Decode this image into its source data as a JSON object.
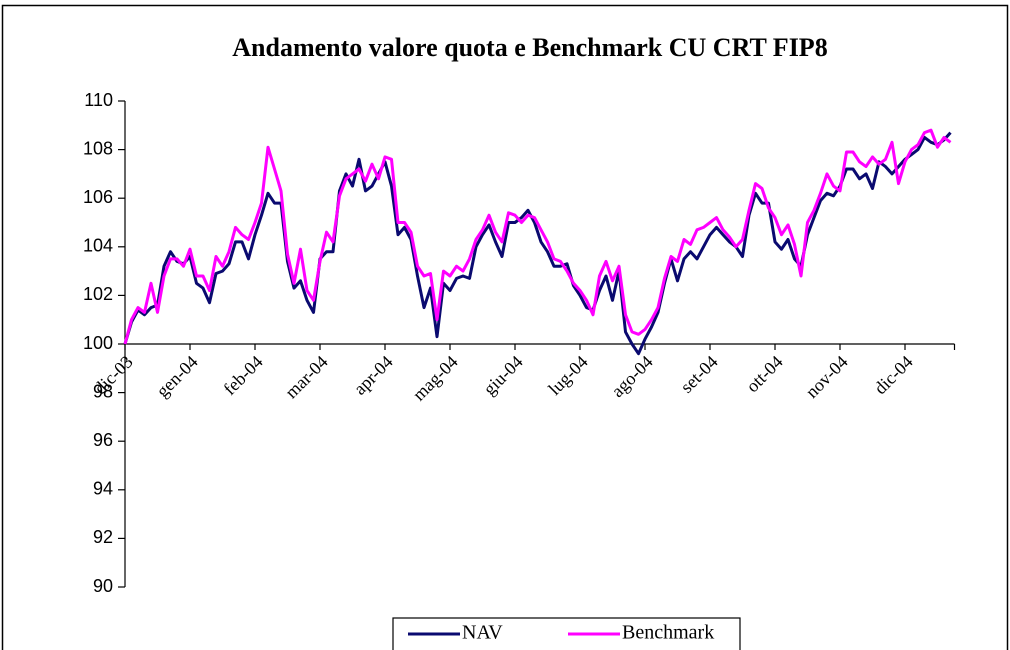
{
  "chart_data": {
    "type": "line",
    "title": "Andamento valore quota e Benchmark CU CRT FIP8",
    "categories": [
      "dic-03",
      null,
      null,
      null,
      null,
      null,
      null,
      null,
      null,
      null,
      "gen-04",
      null,
      null,
      null,
      null,
      null,
      null,
      null,
      null,
      null,
      "feb-04",
      null,
      null,
      null,
      null,
      null,
      null,
      null,
      null,
      null,
      "mar-04",
      null,
      null,
      null,
      null,
      null,
      null,
      null,
      null,
      null,
      "apr-04",
      null,
      null,
      null,
      null,
      null,
      null,
      null,
      null,
      null,
      "mag-04",
      null,
      null,
      null,
      null,
      null,
      null,
      null,
      null,
      null,
      "giu-04",
      null,
      null,
      null,
      null,
      null,
      null,
      null,
      null,
      null,
      "lug-04",
      null,
      null,
      null,
      null,
      null,
      null,
      null,
      null,
      null,
      "ago-04",
      null,
      null,
      null,
      null,
      null,
      null,
      null,
      null,
      null,
      "set-04",
      null,
      null,
      null,
      null,
      null,
      null,
      null,
      null,
      null,
      "ott-04",
      null,
      null,
      null,
      null,
      null,
      null,
      null,
      null,
      null,
      "nov-04",
      null,
      null,
      null,
      null,
      null,
      null,
      null,
      null,
      null,
      "dic-04",
      null,
      null,
      null,
      null,
      null,
      null,
      null
    ],
    "series": [
      {
        "name": "NAV",
        "color": "#0a0a70",
        "values": [
          100,
          100.9,
          101.4,
          101.2,
          101.5,
          101.6,
          103.2,
          103.8,
          103.4,
          103.3,
          103.6,
          102.5,
          102.3,
          101.7,
          102.9,
          103,
          103.3,
          104.2,
          104.2,
          103.5,
          104.5,
          105.3,
          106.2,
          105.8,
          105.8,
          103.4,
          102.3,
          102.6,
          101.8,
          101.3,
          103.5,
          103.8,
          103.8,
          106.3,
          107,
          106.5,
          107.6,
          106.3,
          106.5,
          107,
          107.5,
          106.5,
          104.5,
          104.8,
          104.3,
          102.8,
          101.5,
          102.3,
          100.3,
          102.5,
          102.2,
          102.7,
          102.8,
          102.7,
          104,
          104.5,
          104.9,
          104.2,
          103.6,
          105,
          105,
          105.2,
          105.5,
          105,
          104.2,
          103.8,
          103.2,
          103.2,
          103.3,
          102.4,
          102,
          101.5,
          101.4,
          102.2,
          102.8,
          101.8,
          103,
          100.5,
          100,
          99.6,
          100.2,
          100.7,
          101.3,
          102.5,
          103.5,
          102.6,
          103.5,
          103.8,
          103.5,
          104,
          104.5,
          104.8,
          104.5,
          104.2,
          104,
          103.6,
          105.3,
          106.2,
          105.8,
          105.8,
          104.2,
          103.9,
          104.3,
          103.5,
          103.2,
          104.5,
          105.2,
          105.9,
          106.2,
          106.1,
          106.5,
          107.2,
          107.2,
          106.8,
          107,
          106.4,
          107.5,
          107.3,
          107,
          107.3,
          107.6,
          107.8,
          108,
          108.5,
          108.3,
          108.2,
          108.4,
          108.7
        ]
      },
      {
        "name": "Benchmark",
        "color": "#ff00ff",
        "values": [
          100,
          101,
          101.5,
          101.3,
          102.5,
          101.3,
          102.8,
          103.5,
          103.5,
          103.2,
          103.9,
          102.8,
          102.8,
          102.2,
          103.6,
          103.2,
          103.8,
          104.8,
          104.5,
          104.3,
          105,
          105.8,
          108.1,
          107.2,
          106.3,
          103.7,
          102.5,
          103.9,
          102.2,
          101.8,
          103.4,
          104.6,
          104.2,
          106.1,
          106.8,
          107,
          107.2,
          106.7,
          107.4,
          106.8,
          107.7,
          107.6,
          105,
          105,
          104.6,
          103.2,
          102.8,
          102.9,
          101,
          103,
          102.8,
          103.2,
          103,
          103.5,
          104.3,
          104.7,
          105.3,
          104.6,
          104.2,
          105.4,
          105.3,
          105,
          105.3,
          105.2,
          104.7,
          104.2,
          103.5,
          103.4,
          103,
          102.5,
          102.2,
          101.8,
          101.2,
          102.8,
          103.4,
          102.6,
          103.2,
          101.2,
          100.5,
          100.4,
          100.6,
          101,
          101.5,
          102.7,
          103.6,
          103.4,
          104.3,
          104.1,
          104.7,
          104.8,
          105,
          105.2,
          104.7,
          104.4,
          104,
          104.3,
          105.5,
          106.6,
          106.4,
          105.6,
          105.2,
          104.5,
          104.9,
          104.1,
          102.8,
          105,
          105.5,
          106.2,
          107,
          106.5,
          106.3,
          107.9,
          107.9,
          107.5,
          107.3,
          107.7,
          107.4,
          107.6,
          108.3,
          106.6,
          107.5,
          108,
          108.2,
          108.7,
          108.8,
          108.1,
          108.5,
          108.3
        ]
      }
    ],
    "ylim": [
      90,
      110
    ],
    "yticks": [
      90,
      92,
      94,
      96,
      98,
      100,
      102,
      104,
      106,
      108,
      110
    ],
    "x_axis_at": 100,
    "legend": "bottom"
  }
}
